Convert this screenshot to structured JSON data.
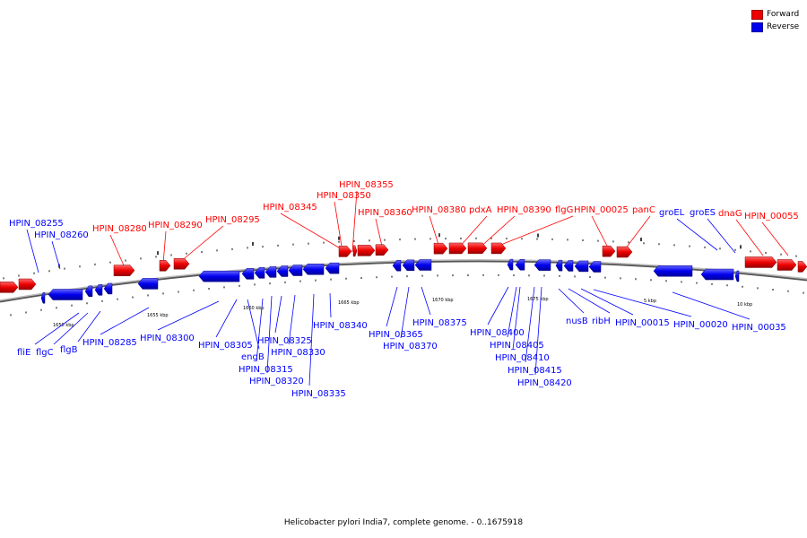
{
  "caption": "Helicobacter pylori India7, complete genome. - 0..1675918",
  "colors": {
    "forward": "#ff0000",
    "reverse": "#0000ff",
    "backbone": "#777777"
  },
  "legend": [
    {
      "label": "Forward",
      "strand": "forward"
    },
    {
      "label": "Reverse",
      "strand": "reverse"
    }
  ],
  "ticks": [
    "1650 kbp",
    "1655 kbp",
    "1660 kbp",
    "1665 kbp",
    "1670 kbp",
    "1675 kbp",
    "5 kbp",
    "10 kbp"
  ],
  "genes": [
    {
      "label": "HPIN_08255",
      "strand": "reverse"
    },
    {
      "label": "HPIN_08260",
      "strand": "reverse"
    },
    {
      "label": "HPIN_08280",
      "strand": "forward"
    },
    {
      "label": "HPIN_08290",
      "strand": "forward"
    },
    {
      "label": "HPIN_08295",
      "strand": "forward"
    },
    {
      "label": "HPIN_08345",
      "strand": "forward"
    },
    {
      "label": "HPIN_08355",
      "strand": "forward"
    },
    {
      "label": "HPIN_08350",
      "strand": "forward"
    },
    {
      "label": "HPIN_08360",
      "strand": "forward"
    },
    {
      "label": "HPIN_08380",
      "strand": "forward"
    },
    {
      "label": "pdxA",
      "strand": "forward"
    },
    {
      "label": "HPIN_08390",
      "strand": "forward"
    },
    {
      "label": "flgG",
      "strand": "forward"
    },
    {
      "label": "HPIN_00025",
      "strand": "forward"
    },
    {
      "label": "panC",
      "strand": "forward"
    },
    {
      "label": "groEL",
      "strand": "reverse"
    },
    {
      "label": "groES",
      "strand": "reverse"
    },
    {
      "label": "dnaG",
      "strand": "forward"
    },
    {
      "label": "HPIN_00055",
      "strand": "forward"
    },
    {
      "label": "fliE",
      "strand": "reverse"
    },
    {
      "label": "flgC",
      "strand": "reverse"
    },
    {
      "label": "flgB",
      "strand": "reverse"
    },
    {
      "label": "HPIN_08285",
      "strand": "reverse"
    },
    {
      "label": "HPIN_08300",
      "strand": "reverse"
    },
    {
      "label": "HPIN_08305",
      "strand": "reverse"
    },
    {
      "label": "engB",
      "strand": "reverse"
    },
    {
      "label": "HPIN_08315",
      "strand": "reverse"
    },
    {
      "label": "HPIN_08320",
      "strand": "reverse"
    },
    {
      "label": "HPIN_08325",
      "strand": "reverse"
    },
    {
      "label": "HPIN_08330",
      "strand": "reverse"
    },
    {
      "label": "HPIN_08335",
      "strand": "reverse"
    },
    {
      "label": "HPIN_08340",
      "strand": "reverse"
    },
    {
      "label": "HPIN_08365",
      "strand": "reverse"
    },
    {
      "label": "HPIN_08370",
      "strand": "reverse"
    },
    {
      "label": "HPIN_08375",
      "strand": "reverse"
    },
    {
      "label": "HPIN_08400",
      "strand": "reverse"
    },
    {
      "label": "HPIN_08405",
      "strand": "reverse"
    },
    {
      "label": "HPIN_08410",
      "strand": "reverse"
    },
    {
      "label": "HPIN_08415",
      "strand": "reverse"
    },
    {
      "label": "HPIN_08420",
      "strand": "reverse"
    },
    {
      "label": "nusB",
      "strand": "reverse"
    },
    {
      "label": "ribH",
      "strand": "reverse"
    },
    {
      "label": "HPIN_00015",
      "strand": "reverse"
    },
    {
      "label": "HPIN_00020",
      "strand": "reverse"
    },
    {
      "label": "HPIN_00035",
      "strand": "reverse"
    }
  ]
}
